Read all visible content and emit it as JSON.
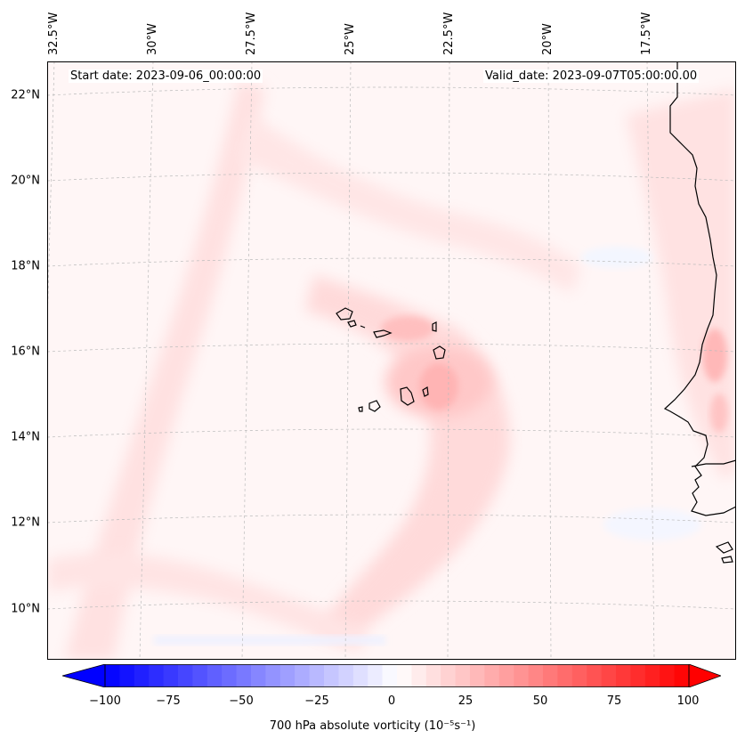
{
  "map": {
    "start_date": "Start date: 2023-09-06_00:00:00",
    "valid_date": "Valid_date: 2023-09-07T05:00:00.00",
    "longitude_labels": [
      "32.5°W",
      "30°W",
      "27.5°W",
      "25°W",
      "22.5°W",
      "20°W",
      "17.5°W"
    ],
    "latitude_labels": [
      "22°N",
      "20°N",
      "18°N",
      "16°N",
      "14°N",
      "12°N",
      "10°N"
    ],
    "variable": "700 hPa absolute vorticity",
    "units": "(10⁻⁵s⁻¹)"
  },
  "colorbar": {
    "min": -100,
    "max": 100,
    "ticks": [
      "−100",
      "−75",
      "−50",
      "−25",
      "0",
      "25",
      "50",
      "75",
      "100"
    ],
    "label": "700 hPa absolute vorticity (10⁻⁵s⁻¹)",
    "colors": {
      "low": "#0000ff",
      "mid": "#ffffff",
      "high": "#ff0000"
    }
  }
}
